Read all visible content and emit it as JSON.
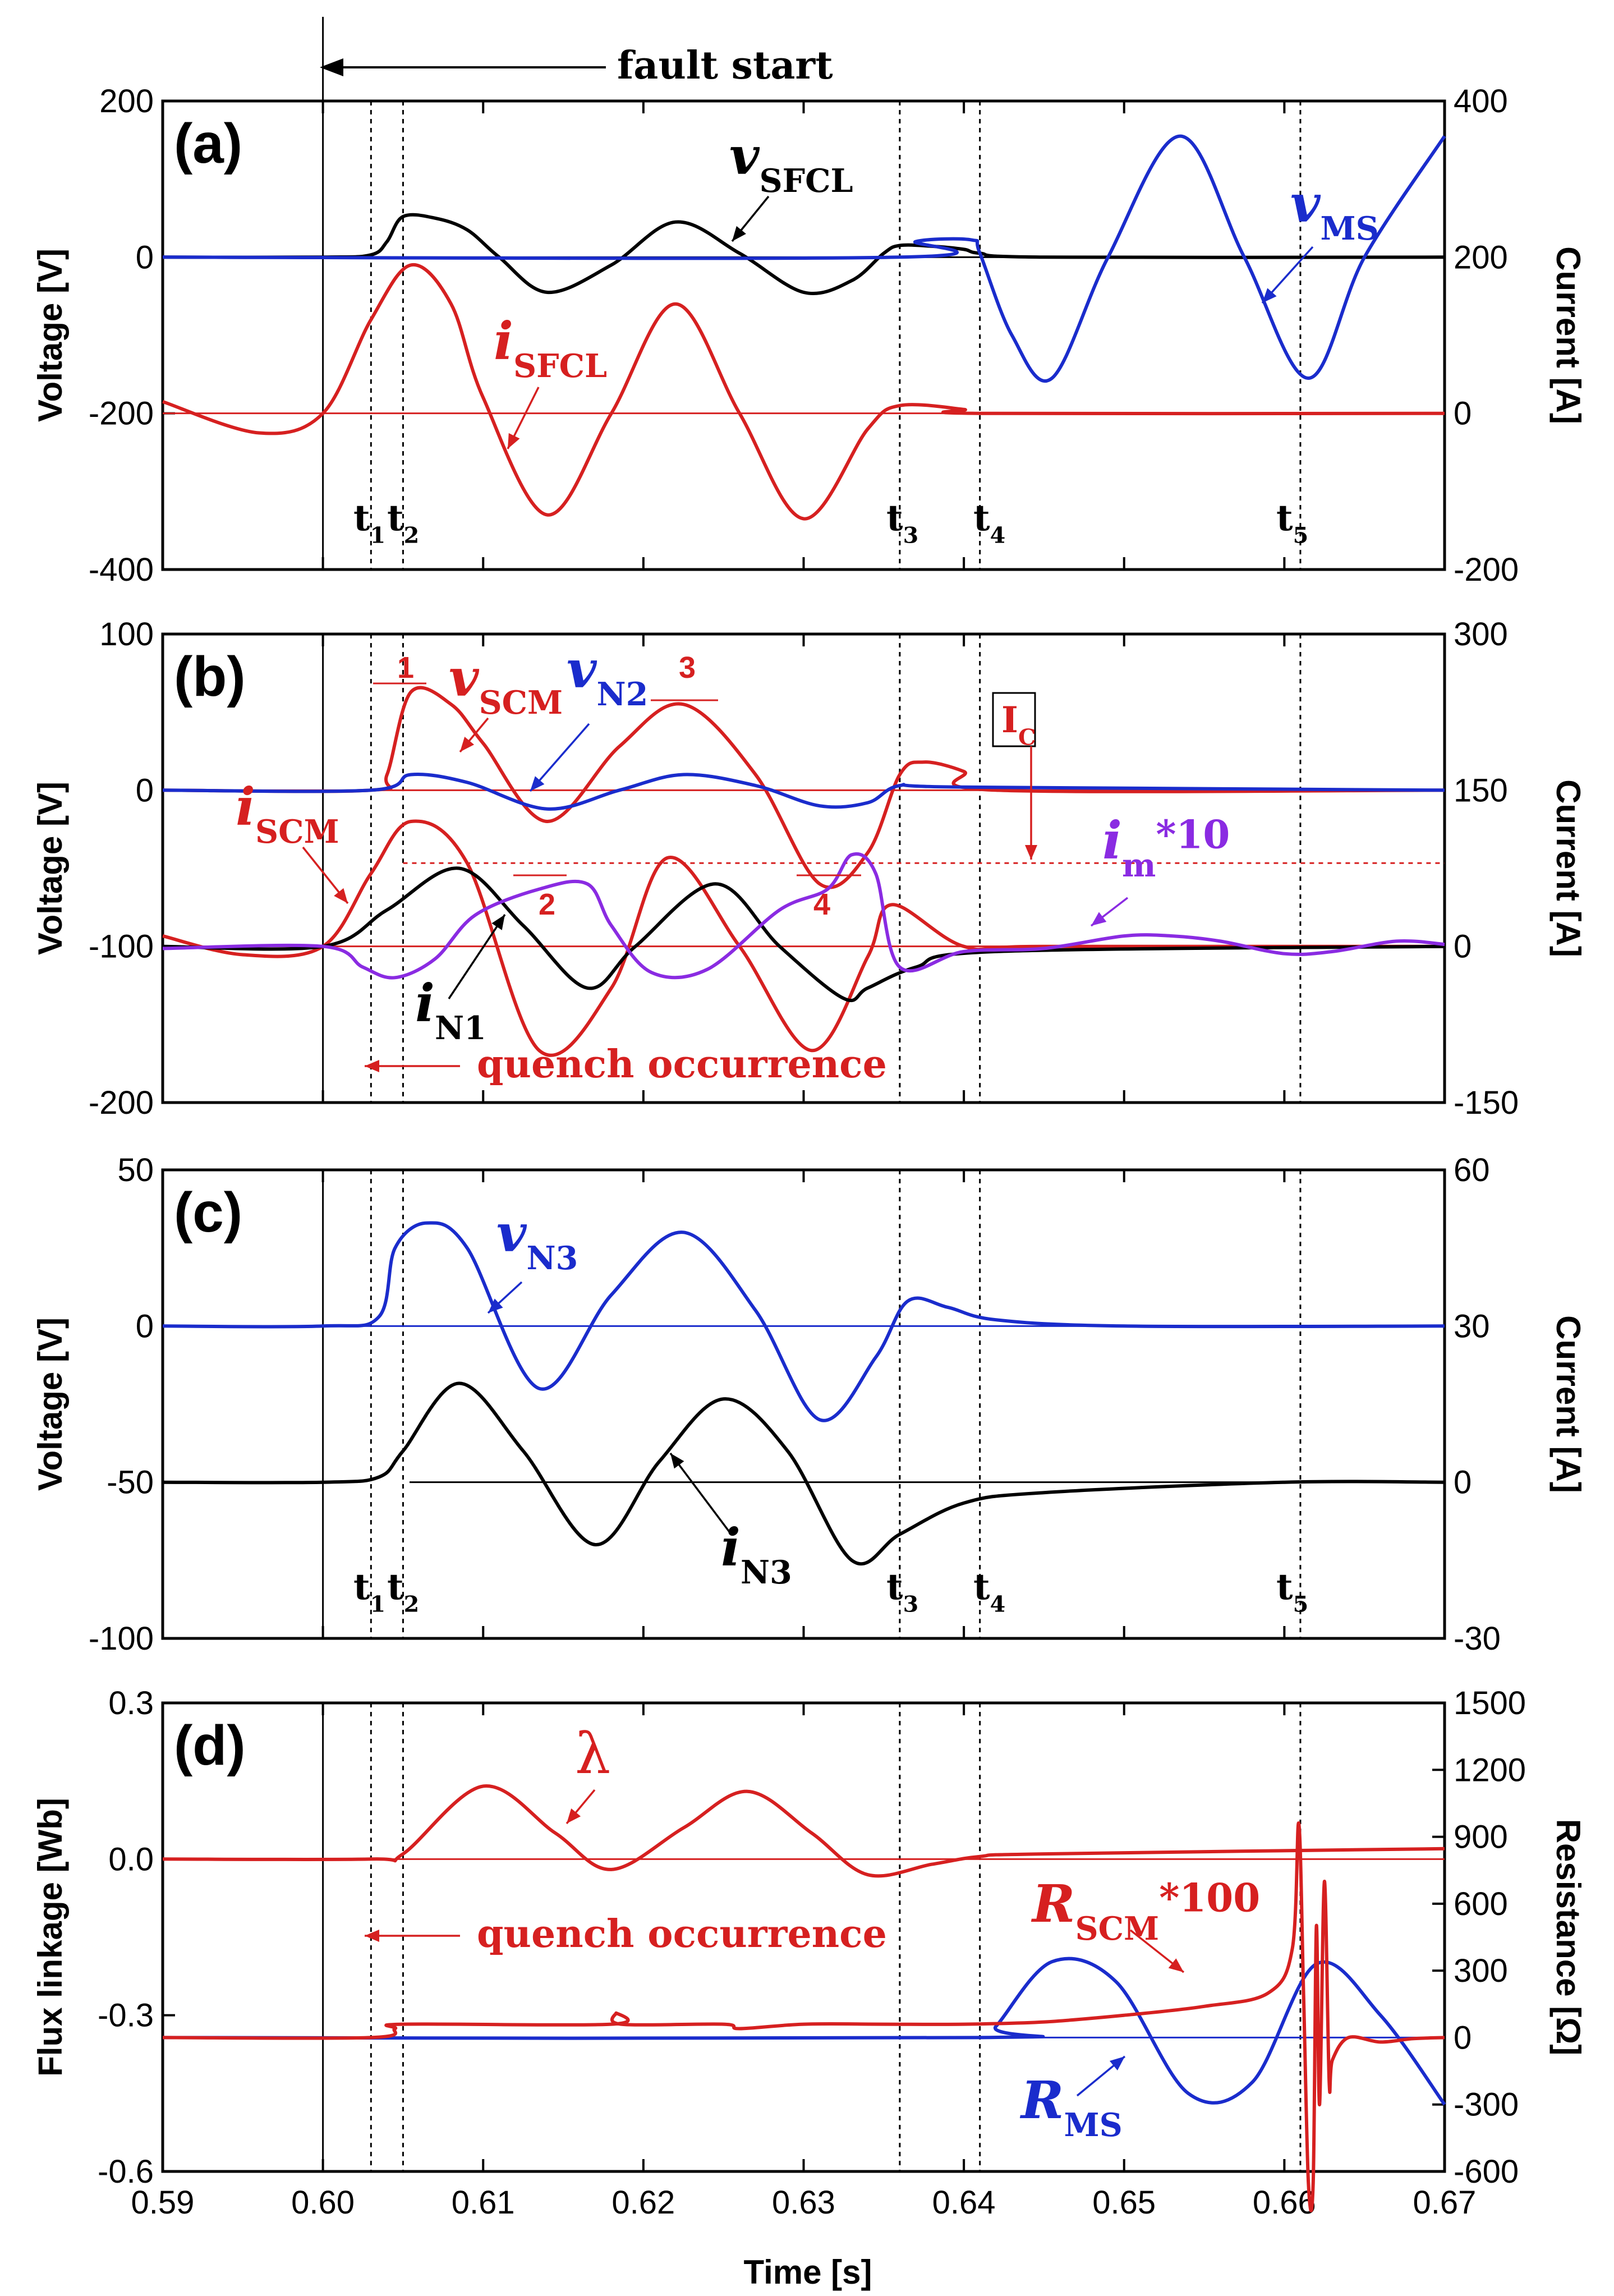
{
  "colors": {
    "red": "#d62020",
    "blue": "#1a2ccc",
    "black": "#000000",
    "purple": "#8a2be2"
  },
  "fault_label": "fault start",
  "quench_label": "quench occurrence",
  "chart_data": {
    "type": "line",
    "xlabel": "Time [s]",
    "xlim": [
      0.59,
      0.67
    ],
    "xticks": [
      "0.59",
      "0.60",
      "0.61",
      "0.62",
      "0.63",
      "0.64",
      "0.65",
      "0.66",
      "0.67"
    ],
    "fault_time": 0.6,
    "event_times": [
      0.603,
      0.605,
      0.636,
      0.641,
      0.661
    ],
    "panels": [
      {
        "label": "(a)",
        "ylabel_left": "Voltage [V]",
        "ylim_left": [
          -400,
          200
        ],
        "yticks_left": [
          "200",
          "0",
          "-200",
          "-400"
        ],
        "ylabel_right": "Current [A]",
        "ylim_right": [
          -200,
          400
        ],
        "yticks_right": [
          "400",
          "200",
          "0",
          "-200"
        ],
        "markers": [
          {
            "main": "t",
            "sub": "1"
          },
          {
            "main": "t",
            "sub": "2"
          },
          {
            "main": "t",
            "sub": "3"
          },
          {
            "main": "t",
            "sub": "4"
          },
          {
            "main": "t",
            "sub": "5"
          }
        ],
        "series": [
          {
            "name": "v_SFCL",
            "label_main": "v",
            "label_sub": "SFCL",
            "axis": "left",
            "color": "black",
            "x": [
              0.59,
              0.6,
              0.603,
              0.604,
              0.605,
              0.607,
              0.609,
              0.611,
              0.614,
              0.618,
              0.622,
              0.626,
              0.63,
              0.633,
              0.635,
              0.636,
              0.638,
              0.64,
              0.641,
              0.645,
              0.67
            ],
            "y": [
              0,
              0,
              3,
              20,
              52,
              50,
              35,
              0,
              -45,
              -10,
              45,
              5,
              -45,
              -30,
              5,
              15,
              14,
              10,
              5,
              0,
              0
            ]
          },
          {
            "name": "v_MS",
            "label_main": "v",
            "label_sub": "MS",
            "axis": "left",
            "color": "blue",
            "x": [
              0.59,
              0.636,
              0.637,
              0.6405,
              0.641,
              0.643,
              0.6455,
              0.649,
              0.6535,
              0.6575,
              0.6615,
              0.665,
              0.67
            ],
            "y": [
              0,
              0,
              20,
              22,
              5,
              -100,
              -155,
              0,
              155,
              0,
              -155,
              0,
              155
            ]
          },
          {
            "name": "i_SFCL",
            "label_main": "i",
            "label_sub": "SFCL",
            "axis": "right",
            "color": "red",
            "x": [
              0.59,
              0.596,
              0.6,
              0.603,
              0.6055,
              0.608,
              0.61,
              0.614,
              0.618,
              0.622,
              0.626,
              0.63,
              0.634,
              0.636,
              0.64,
              0.641,
              0.67
            ],
            "y": [
              15,
              -25,
              0,
              120,
              190,
              140,
              20,
              -130,
              0,
              140,
              0,
              -135,
              -20,
              10,
              5,
              0,
              0
            ]
          }
        ]
      },
      {
        "label": "(b)",
        "ylabel_left": "Voltage [V]",
        "ylim_left": [
          -200,
          100
        ],
        "yticks_left": [
          "100",
          "0",
          "-100",
          "-200"
        ],
        "ylabel_right": "Current [A]",
        "ylim_right": [
          -150,
          300
        ],
        "yticks_right": [
          "300",
          "150",
          "0",
          "-150"
        ],
        "Ic_label_main": "I",
        "Ic_label_sub": "C",
        "Ic_level": 80,
        "peak_labels": [
          "1",
          "2",
          "3",
          "4"
        ],
        "series": [
          {
            "name": "v_SCM",
            "label_main": "v",
            "label_sub": "SCM",
            "axis": "left",
            "color": "red",
            "x": [
              0.59,
              0.603,
              0.604,
              0.6055,
              0.608,
              0.61,
              0.614,
              0.6185,
              0.6225,
              0.627,
              0.631,
              0.634,
              0.636,
              0.6375,
              0.64,
              0.642,
              0.67
            ],
            "y": [
              0,
              0,
              10,
              63,
              55,
              30,
              -20,
              28,
              55,
              10,
              -60,
              -40,
              10,
              18,
              12,
              0,
              0
            ]
          },
          {
            "name": "v_N2",
            "label_main": "v",
            "label_sub": "N2",
            "axis": "left",
            "color": "blue",
            "x": [
              0.59,
              0.603,
              0.6055,
              0.609,
              0.614,
              0.6185,
              0.6225,
              0.627,
              0.631,
              0.634,
              0.636,
              0.64,
              0.67
            ],
            "y": [
              0,
              0,
              10,
              5,
              -12,
              0,
              10,
              3,
              -10,
              -8,
              3,
              2,
              0
            ]
          },
          {
            "name": "i_SCM",
            "label_main": "i",
            "label_sub": "SCM",
            "axis": "right",
            "color": "red",
            "x": [
              0.59,
              0.595,
              0.6,
              0.603,
              0.6055,
              0.609,
              0.6135,
              0.618,
              0.6215,
              0.626,
              0.6305,
              0.634,
              0.6355,
              0.64,
              0.645,
              0.67
            ],
            "y": [
              10,
              -8,
              0,
              70,
              120,
              80,
              -100,
              -40,
              85,
              0,
              -100,
              -10,
              40,
              0,
              0,
              0
            ]
          },
          {
            "name": "i_N1",
            "label_main": "i",
            "label_sub": "N1",
            "axis": "right",
            "color": "black",
            "x": [
              0.59,
              0.6,
              0.604,
              0.6085,
              0.6125,
              0.6165,
              0.6195,
              0.6245,
              0.6285,
              0.6325,
              0.634,
              0.637,
              0.642,
              0.67
            ],
            "y": [
              0,
              0,
              35,
              75,
              20,
              -40,
              0,
              60,
              0,
              -50,
              -40,
              -20,
              -5,
              0
            ]
          },
          {
            "name": "i_m*10",
            "label_main": "i",
            "label_sub": "m",
            "label_suffix": "*10",
            "axis": "right",
            "color": "purple",
            "x": [
              0.59,
              0.6,
              0.6025,
              0.6045,
              0.607,
              0.6095,
              0.6135,
              0.6165,
              0.618,
              0.6205,
              0.624,
              0.6285,
              0.6315,
              0.633,
              0.6345,
              0.636,
              0.64,
              0.645,
              0.65,
              0.653,
              0.656,
              0.66,
              0.663,
              0.667,
              0.67
            ],
            "y": [
              -2,
              0,
              -20,
              -30,
              -12,
              30,
              55,
              60,
              20,
              -25,
              -22,
              35,
              55,
              88,
              70,
              -20,
              -5,
              -2,
              10,
              10,
              5,
              -7,
              -5,
              5,
              2
            ]
          }
        ]
      },
      {
        "label": "(c)",
        "ylabel_left": "Voltage [V]",
        "ylim_left": [
          -100,
          50
        ],
        "yticks_left": [
          "50",
          "0",
          "-50",
          "-100"
        ],
        "ylabel_right": "Current [A]",
        "ylim_right": [
          -30,
          60
        ],
        "yticks_right": [
          "60",
          "30",
          "0",
          "-30"
        ],
        "markers": [
          {
            "main": "t",
            "sub": "1"
          },
          {
            "main": "t",
            "sub": "2"
          },
          {
            "main": "t",
            "sub": "3"
          },
          {
            "main": "t",
            "sub": "4"
          },
          {
            "main": "t",
            "sub": "5"
          }
        ],
        "series": [
          {
            "name": "v_N3",
            "label_main": "v",
            "label_sub": "N3",
            "axis": "left",
            "color": "blue",
            "x": [
              0.59,
              0.6,
              0.6035,
              0.6045,
              0.6065,
              0.609,
              0.6135,
              0.618,
              0.6225,
              0.627,
              0.631,
              0.6345,
              0.6365,
              0.639,
              0.642,
              0.65,
              0.67
            ],
            "y": [
              0,
              0,
              3,
              25,
              33,
              25,
              -20,
              10,
              30,
              5,
              -30,
              -10,
              8,
              6,
              2,
              0,
              0
            ]
          },
          {
            "name": "i_N3",
            "label_main": "i",
            "label_sub": "N3",
            "axis": "right",
            "color": "black",
            "x": [
              0.59,
              0.6,
              0.6035,
              0.605,
              0.6085,
              0.6125,
              0.617,
              0.621,
              0.625,
              0.629,
              0.633,
              0.636,
              0.64,
              0.645,
              0.66,
              0.67
            ],
            "y": [
              0,
              0,
              1,
              6,
              19,
              6,
              -12,
              4,
              16,
              6,
              -15,
              -10,
              -4,
              -2,
              0,
              0
            ]
          }
        ]
      },
      {
        "label": "(d)",
        "ylabel_left": "Flux linkage [Wb]",
        "ylim_left": [
          -0.6,
          0.3
        ],
        "yticks_left": [
          "0.3",
          "0.0",
          "-0.3",
          "-0.6"
        ],
        "ylabel_right": "Resistance [Ω]",
        "ylim_right": [
          -600,
          1500
        ],
        "yticks_right": [
          "1500",
          "1200",
          "900",
          "600",
          "300",
          "0",
          "-300",
          "-600"
        ],
        "series": [
          {
            "name": "lambda",
            "label_main": "λ",
            "axis": "left",
            "color": "red",
            "x": [
              0.59,
              0.603,
              0.605,
              0.61,
              0.6145,
              0.618,
              0.6225,
              0.6265,
              0.6305,
              0.634,
              0.638,
              0.641,
              0.645,
              0.67
            ],
            "y": [
              0,
              0,
              0.01,
              0.14,
              0.05,
              -0.02,
              0.06,
              0.13,
              0.05,
              -0.03,
              -0.01,
              0.005,
              0.01,
              0.02
            ]
          },
          {
            "name": "R_MS",
            "label_main": "R",
            "label_sub": "MS",
            "axis": "right",
            "color": "blue",
            "x": [
              0.59,
              0.641,
              0.642,
              0.6455,
              0.6495,
              0.654,
              0.658,
              0.662,
              0.666,
              0.67
            ],
            "y": [
              0,
              0,
              50,
              340,
              250,
              -250,
              -200,
              330,
              100,
              -300
            ]
          },
          {
            "name": "R_SCM*100",
            "label_main": "R",
            "label_sub": "SCM",
            "label_suffix": "*100",
            "axis": "right",
            "color": "red",
            "x": [
              0.59,
              0.603,
              0.6045,
              0.605,
              0.618,
              0.6183,
              0.6186,
              0.625,
              0.626,
              0.63,
              0.635,
              0.64,
              0.645,
              0.65,
              0.655,
              0.659,
              0.6605,
              0.6609,
              0.6612,
              0.6615,
              0.6618,
              0.662,
              0.6622,
              0.6625,
              0.6628,
              0.663,
              0.664,
              0.666,
              0.668,
              0.67
            ],
            "y": [
              0,
              0,
              40,
              60,
              60,
              110,
              60,
              60,
              40,
              60,
              60,
              60,
              70,
              100,
              140,
              200,
              400,
              960,
              200,
              -650,
              -650,
              500,
              -300,
              700,
              -200,
              -100,
              0,
              -20,
              -5,
              0
            ]
          }
        ]
      }
    ]
  }
}
